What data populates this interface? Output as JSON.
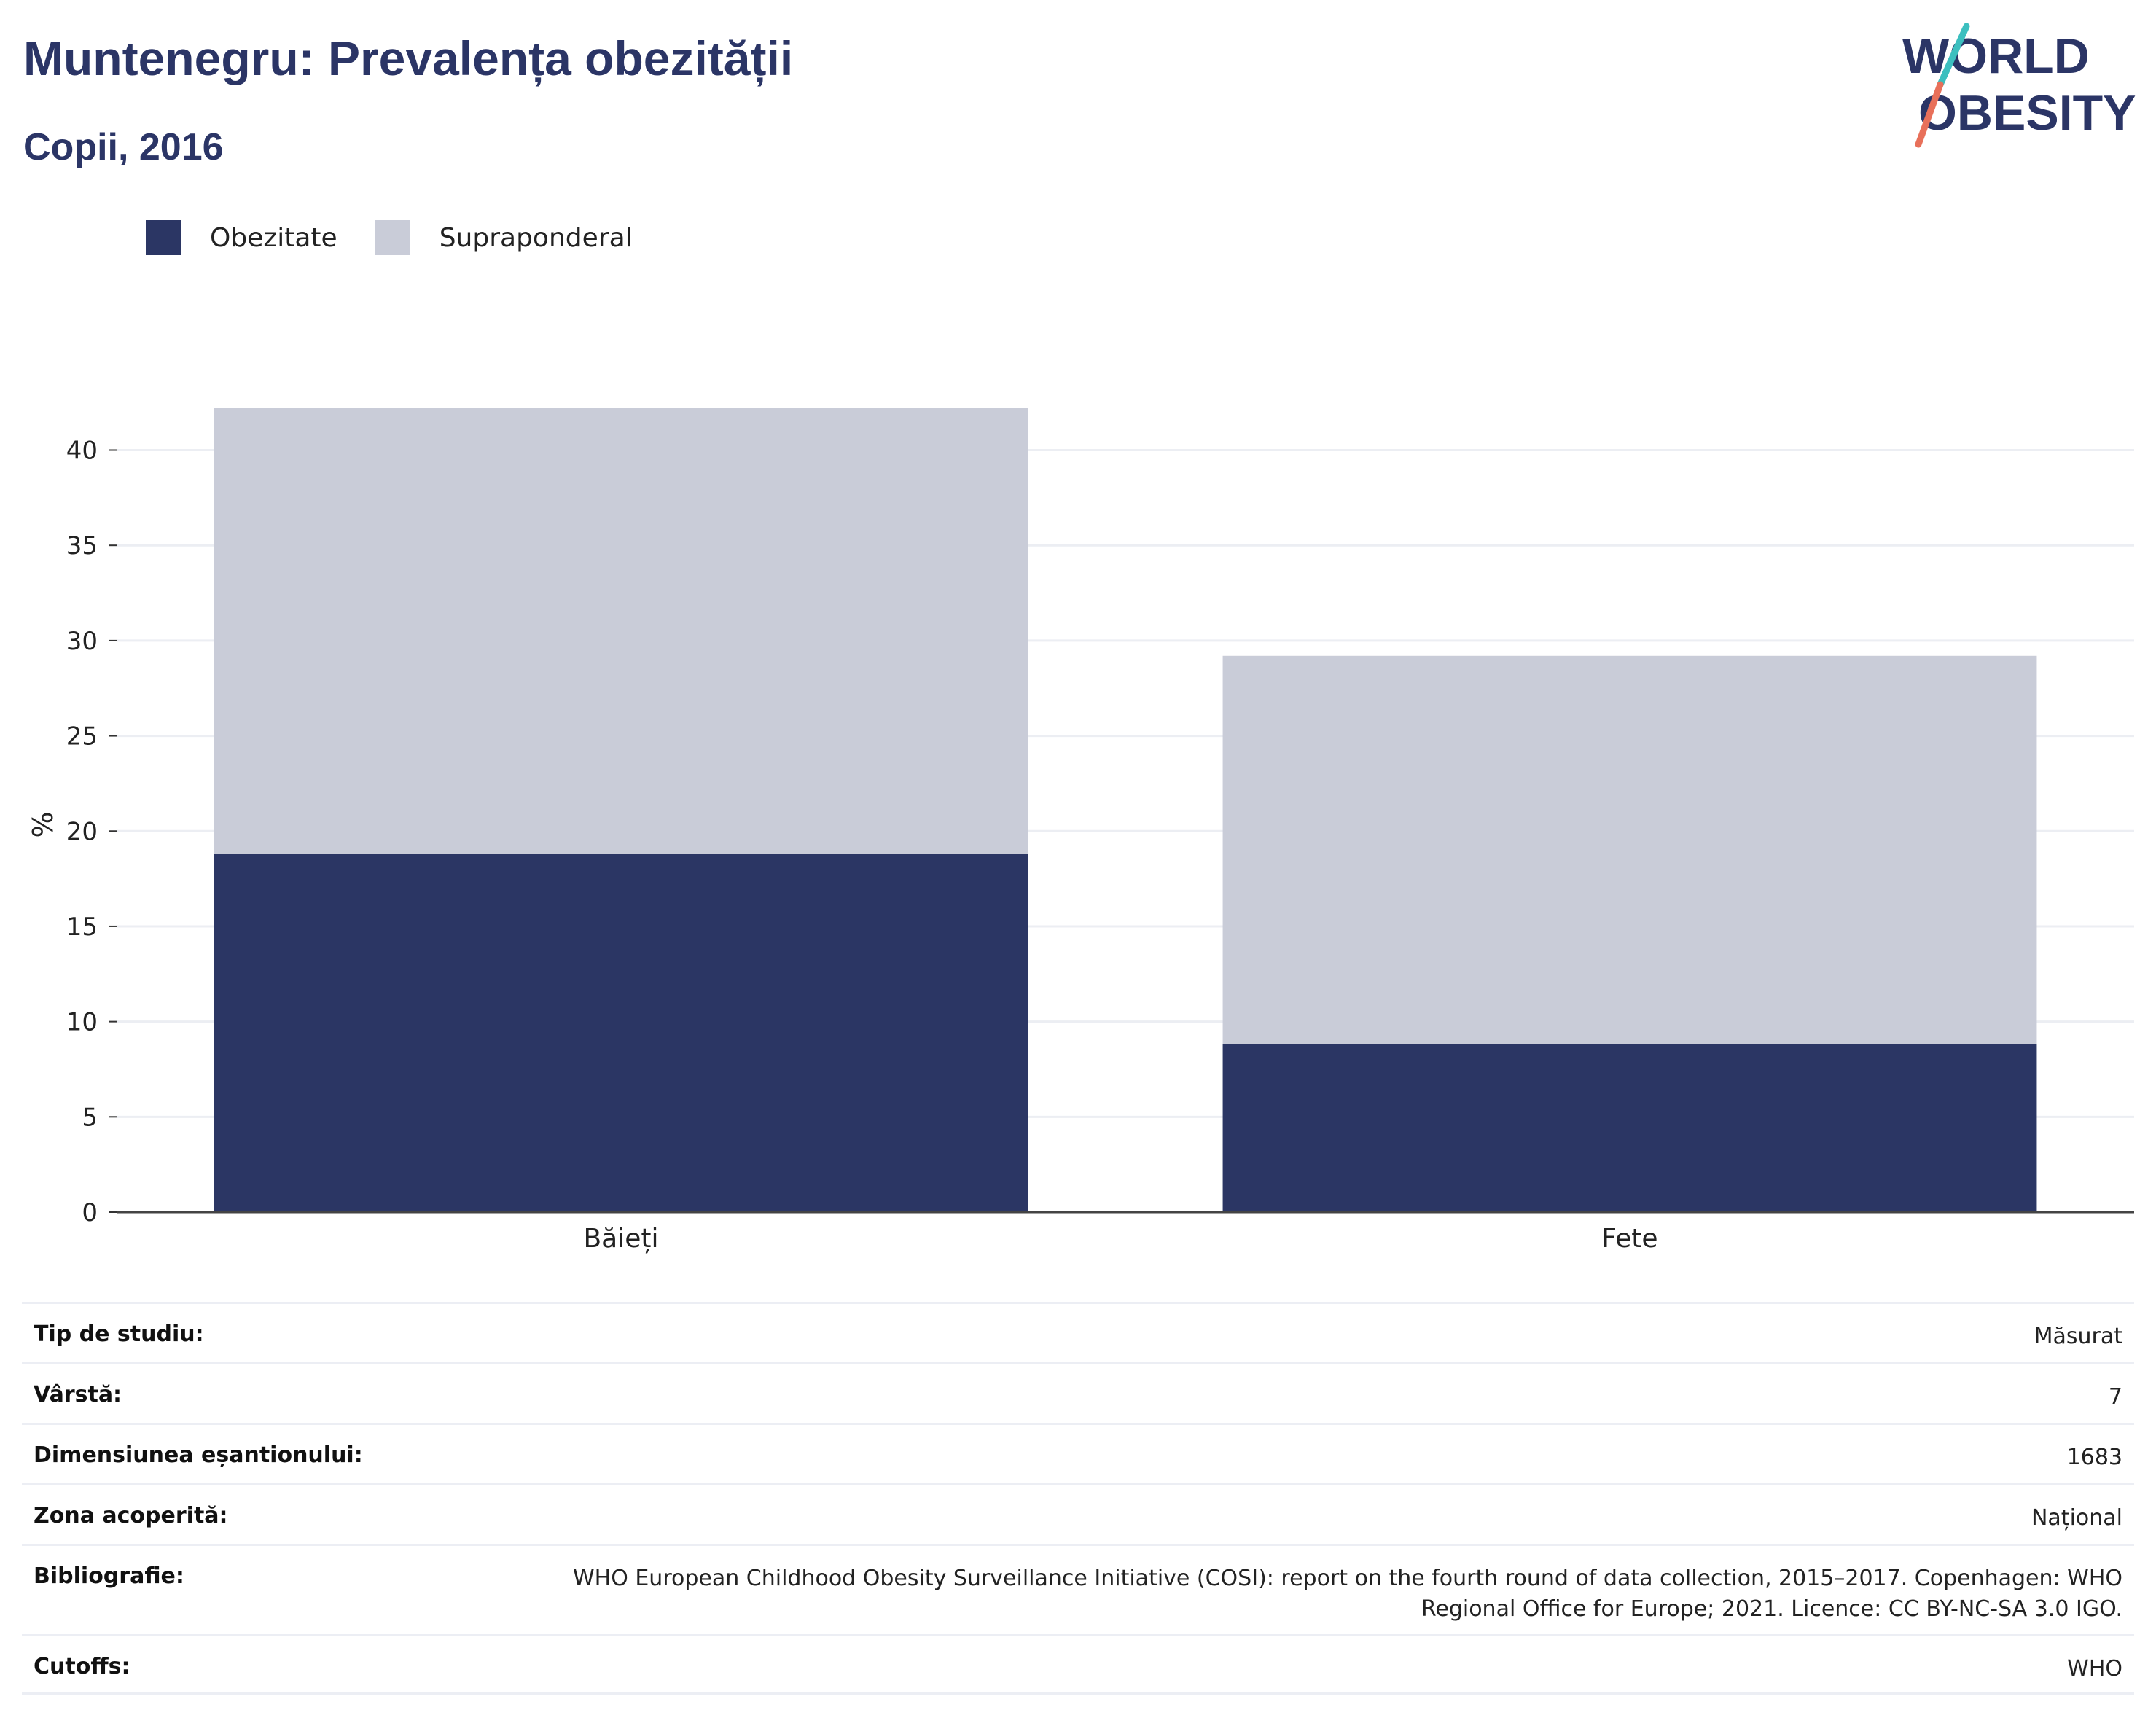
{
  "header": {
    "title": "Muntenegru: Prevalența obezității",
    "subtitle": "Copii, 2016"
  },
  "logo": {
    "line1": "WORLD",
    "line2": "OBESITY",
    "colors": {
      "text": "#2b3566",
      "slash_top": "#3cbfbf",
      "slash_bottom": "#e8705a"
    }
  },
  "legend": [
    {
      "label": "Obezitate",
      "color": "#2b3664"
    },
    {
      "label": "Supraponderal",
      "color": "#c9ccd8"
    }
  ],
  "chart_data": {
    "type": "bar",
    "stacked": true,
    "categories": [
      "Băieți",
      "Fete"
    ],
    "series": [
      {
        "name": "Obezitate",
        "color": "#2b3664",
        "values": [
          18.8,
          8.8
        ]
      },
      {
        "name": "Supraponderal",
        "color": "#c9ccd8",
        "values": [
          23.4,
          20.4
        ]
      }
    ],
    "ylabel": "%",
    "xlabel": "",
    "ylim": [
      0,
      42.2
    ],
    "yticks": [
      0,
      5,
      10,
      15,
      20,
      25,
      30,
      35,
      40
    ],
    "grid": true,
    "legend_position": "top-left"
  },
  "meta": [
    {
      "key": "Tip de studiu:",
      "value": "Măsurat"
    },
    {
      "key": "Vârstă:",
      "value": "7"
    },
    {
      "key": "Dimensiunea eșantionului:",
      "value": "1683"
    },
    {
      "key": "Zona acoperită:",
      "value": "Național"
    },
    {
      "key": "Bibliografie:",
      "value": "WHO European Childhood Obesity Surveillance Initiative (COSI): report on the fourth round of data collection, 2015–2017. Copenhagen: WHO Regional Office for Europe; 2021. Licence: CC BY-NC-SA 3.0 IGO."
    },
    {
      "key": "Cutoffs:",
      "value": "WHO"
    }
  ]
}
